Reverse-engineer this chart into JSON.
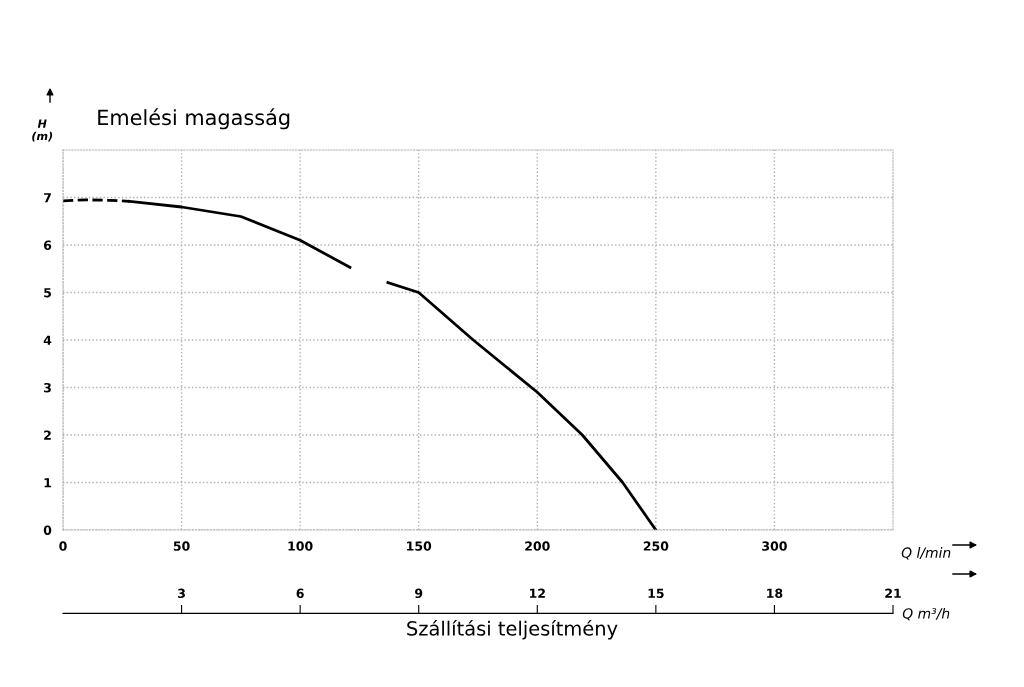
{
  "chart_data": {
    "type": "line",
    "title": "Emelési magasság",
    "ylabel": "H\n(m)",
    "xlabel": "Q l/min",
    "x2label": "Q m³/h",
    "annotations": [
      "Szállítási teljesítmény"
    ],
    "series": [
      {
        "color": "#000000",
        "line_style": "dashed",
        "x": [
          0,
          10,
          20,
          28
        ],
        "values": [
          6.93,
          6.95,
          6.94,
          6.92
        ]
      },
      {
        "color": "#000000",
        "line_style": "solid",
        "x": [
          28,
          50,
          75,
          100,
          121
        ],
        "values": [
          6.92,
          6.8,
          6.6,
          6.1,
          5.53
        ]
      },
      {
        "color": "#000000",
        "line_style": "solid",
        "x": [
          137,
          150,
          173,
          200,
          219,
          236,
          250
        ],
        "values": [
          5.21,
          5.0,
          4.0,
          2.9,
          2.0,
          1.0,
          0
        ]
      }
    ],
    "xlim": [
      0,
      350
    ],
    "xticks": [
      0,
      50,
      100,
      150,
      200,
      250,
      300
    ],
    "ylim": [
      0,
      8
    ],
    "yticks": [
      0,
      1,
      2,
      3,
      4,
      5,
      6,
      7
    ],
    "x2lim": [
      0,
      21
    ],
    "x2ticks": [
      3,
      6,
      9,
      12,
      15,
      18,
      21
    ],
    "grid": true,
    "legend": false,
    "marker": "none"
  }
}
